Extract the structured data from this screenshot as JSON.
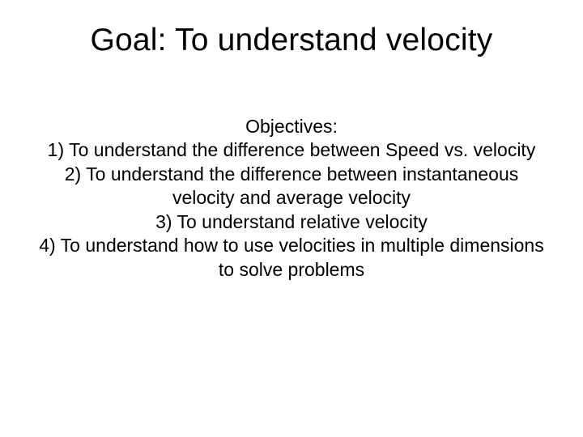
{
  "background_color": "#ffffff",
  "text_color": "#000000",
  "font_family": "Arial",
  "title": {
    "text": "Goal:  To understand velocity",
    "fontsize": 39,
    "weight": "normal",
    "align": "center"
  },
  "body": {
    "fontsize": 23,
    "weight": "normal",
    "align": "center",
    "label": "Objectives:",
    "items": [
      "1)   To understand the difference between Speed vs. velocity",
      "2)   To understand the difference between instantaneous velocity and average velocity",
      "3)   To understand relative velocity",
      "4)   To understand how to use velocities in multiple dimensions to solve problems"
    ]
  }
}
